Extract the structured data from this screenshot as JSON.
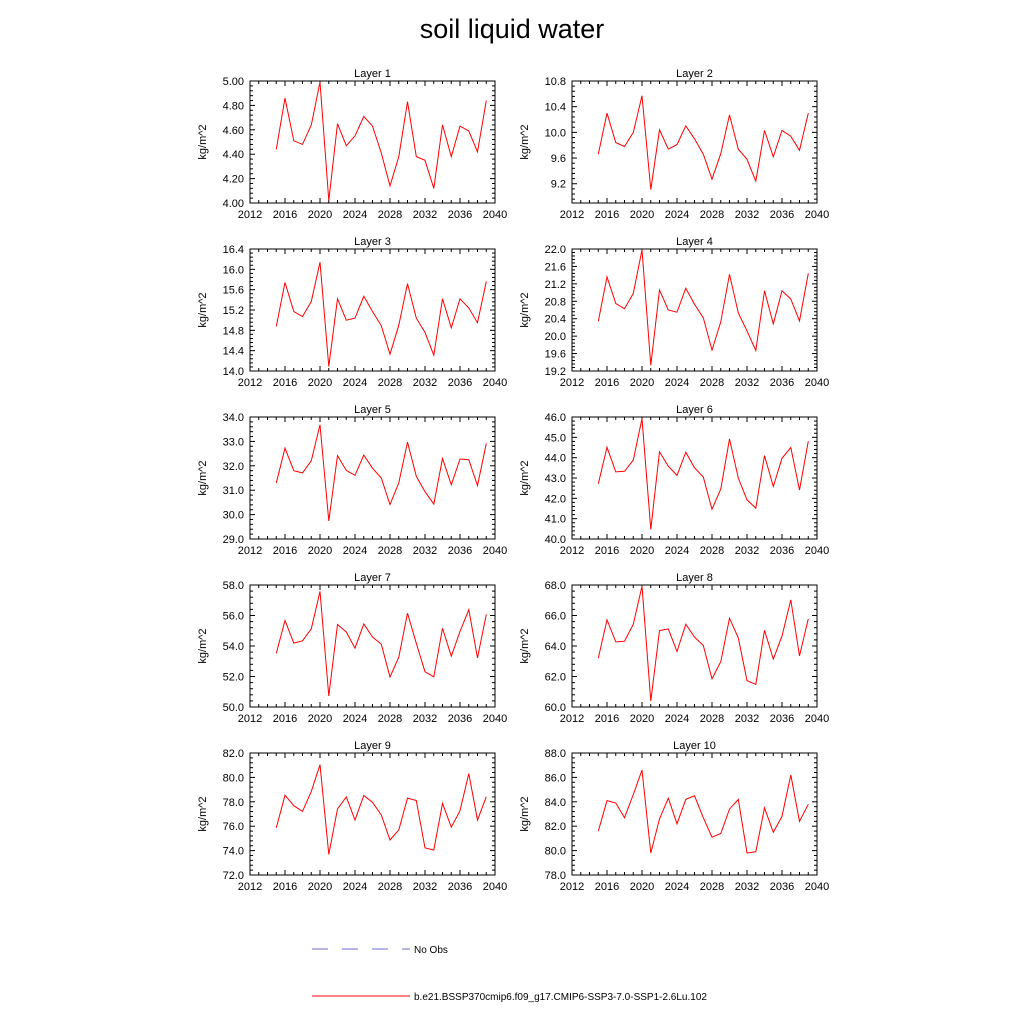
{
  "figure": {
    "title": "soil liquid water",
    "legend": [
      {
        "label": "No Obs",
        "color": "#6b6bd6",
        "style": "dashed"
      },
      {
        "label": "b.e21.BSSP370cmip6.f09_g17.CMIP6-SSP3-7.0-SSP1-2.6Lu.102",
        "color": "#ff0000",
        "style": "solid"
      }
    ]
  },
  "chart_data": [
    {
      "type": "line",
      "title": "Layer 1",
      "ylabel": "kg/m^2",
      "xlim": [
        2012,
        2040
      ],
      "ylim": [
        4.0,
        5.0
      ],
      "xticks": [
        "2012",
        "2016",
        "2020",
        "2024",
        "2028",
        "2032",
        "2036",
        "2040"
      ],
      "yticks": [
        "4.00",
        "4.20",
        "4.40",
        "4.60",
        "4.80",
        "5.00"
      ],
      "ytick_values": [
        4.0,
        4.2,
        4.4,
        4.6,
        4.8,
        5.0
      ],
      "series": [
        {
          "color": "#ff0000",
          "x": [
            2015,
            2016,
            2017,
            2018,
            2019,
            2020,
            2021,
            2022,
            2023,
            2024,
            2025,
            2026,
            2027,
            2028,
            2029,
            2030,
            2031,
            2032,
            2033,
            2034,
            2035,
            2036,
            2037,
            2038,
            2039
          ],
          "y": [
            4.44,
            4.86,
            4.51,
            4.48,
            4.64,
            4.99,
            4.02,
            4.65,
            4.47,
            4.55,
            4.71,
            4.63,
            4.41,
            4.14,
            4.38,
            4.83,
            4.38,
            4.35,
            4.12,
            4.64,
            4.38,
            4.63,
            4.59,
            4.42,
            4.84
          ]
        }
      ]
    },
    {
      "type": "line",
      "title": "Layer 2",
      "ylabel": "kg/m^2",
      "xlim": [
        2012,
        2040
      ],
      "ylim": [
        8.9,
        10.8
      ],
      "xticks": [
        "2012",
        "2016",
        "2020",
        "2024",
        "2028",
        "2032",
        "2036",
        "2040"
      ],
      "yticks": [
        "9.2",
        "9.6",
        "10.0",
        "10.4",
        "10.8"
      ],
      "ytick_values": [
        9.2,
        9.6,
        10.0,
        10.4,
        10.8
      ],
      "series": [
        {
          "color": "#ff0000",
          "x": [
            2015,
            2016,
            2017,
            2018,
            2019,
            2020,
            2021,
            2022,
            2023,
            2024,
            2025,
            2026,
            2027,
            2028,
            2029,
            2030,
            2031,
            2032,
            2033,
            2034,
            2035,
            2036,
            2037,
            2038,
            2039
          ],
          "y": [
            9.66,
            10.3,
            9.84,
            9.78,
            10.0,
            10.57,
            9.11,
            10.04,
            9.74,
            9.81,
            10.1,
            9.9,
            9.66,
            9.27,
            9.67,
            10.27,
            9.74,
            9.58,
            9.24,
            10.03,
            9.62,
            10.03,
            9.94,
            9.72,
            10.3
          ]
        }
      ]
    },
    {
      "type": "line",
      "title": "Layer 3",
      "ylabel": "kg/m^2",
      "xlim": [
        2012,
        2040
      ],
      "ylim": [
        14.0,
        16.4
      ],
      "xticks": [
        "2012",
        "2016",
        "2020",
        "2024",
        "2028",
        "2032",
        "2036",
        "2040"
      ],
      "yticks": [
        "14.0",
        "14.4",
        "14.8",
        "15.2",
        "15.6",
        "16.0",
        "16.4"
      ],
      "ytick_values": [
        14.0,
        14.4,
        14.8,
        15.2,
        15.6,
        16.0,
        16.4
      ],
      "series": [
        {
          "color": "#ff0000",
          "x": [
            2015,
            2016,
            2017,
            2018,
            2019,
            2020,
            2021,
            2022,
            2023,
            2024,
            2025,
            2026,
            2027,
            2028,
            2029,
            2030,
            2031,
            2032,
            2033,
            2034,
            2035,
            2036,
            2037,
            2038,
            2039
          ],
          "y": [
            14.88,
            15.74,
            15.17,
            15.07,
            15.37,
            16.14,
            14.09,
            15.42,
            15.0,
            15.04,
            15.47,
            15.17,
            14.89,
            14.33,
            14.9,
            15.72,
            15.04,
            14.76,
            14.31,
            15.42,
            14.85,
            15.42,
            15.24,
            14.95,
            15.76
          ]
        }
      ]
    },
    {
      "type": "line",
      "title": "Layer 4",
      "ylabel": "kg/m^2",
      "xlim": [
        2012,
        2040
      ],
      "ylim": [
        19.2,
        22.0
      ],
      "xticks": [
        "2012",
        "2016",
        "2020",
        "2024",
        "2028",
        "2032",
        "2036",
        "2040"
      ],
      "yticks": [
        "19.2",
        "19.6",
        "20.0",
        "20.4",
        "20.8",
        "21.2",
        "21.6",
        "22.0"
      ],
      "ytick_values": [
        19.2,
        19.6,
        20.0,
        20.4,
        20.8,
        21.2,
        21.6,
        22.0
      ],
      "series": [
        {
          "color": "#ff0000",
          "x": [
            2015,
            2016,
            2017,
            2018,
            2019,
            2020,
            2021,
            2022,
            2023,
            2024,
            2025,
            2026,
            2027,
            2028,
            2029,
            2030,
            2031,
            2032,
            2033,
            2034,
            2035,
            2036,
            2037,
            2038,
            2039
          ],
          "y": [
            20.34,
            21.36,
            20.75,
            20.63,
            20.98,
            21.98,
            19.33,
            21.06,
            20.6,
            20.55,
            21.1,
            20.73,
            20.42,
            19.68,
            20.33,
            21.42,
            20.53,
            20.12,
            19.67,
            21.04,
            20.28,
            21.04,
            20.85,
            20.35,
            21.44
          ]
        }
      ]
    },
    {
      "type": "line",
      "title": "Layer 5",
      "ylabel": "kg/m^2",
      "xlim": [
        2012,
        2040
      ],
      "ylim": [
        29.0,
        34.0
      ],
      "xticks": [
        "2012",
        "2016",
        "2020",
        "2024",
        "2028",
        "2032",
        "2036",
        "2040"
      ],
      "yticks": [
        "29.0",
        "30.0",
        "31.0",
        "32.0",
        "33.0",
        "34.0"
      ],
      "ytick_values": [
        29.0,
        30.0,
        31.0,
        32.0,
        33.0,
        34.0
      ],
      "series": [
        {
          "color": "#ff0000",
          "x": [
            2015,
            2016,
            2017,
            2018,
            2019,
            2020,
            2021,
            2022,
            2023,
            2024,
            2025,
            2026,
            2027,
            2028,
            2029,
            2030,
            2031,
            2032,
            2033,
            2034,
            2035,
            2036,
            2037,
            2038,
            2039
          ],
          "y": [
            31.3,
            32.72,
            31.8,
            31.71,
            32.21,
            33.68,
            29.74,
            32.42,
            31.81,
            31.61,
            32.44,
            31.9,
            31.5,
            30.41,
            31.3,
            32.97,
            31.57,
            30.94,
            30.43,
            32.3,
            31.22,
            32.28,
            32.25,
            31.19,
            32.92
          ]
        }
      ]
    },
    {
      "type": "line",
      "title": "Layer 6",
      "ylabel": "kg/m^2",
      "xlim": [
        2012,
        2040
      ],
      "ylim": [
        40.0,
        46.0
      ],
      "xticks": [
        "2012",
        "2016",
        "2020",
        "2024",
        "2028",
        "2032",
        "2036",
        "2040"
      ],
      "yticks": [
        "40.0",
        "41.0",
        "42.0",
        "43.0",
        "44.0",
        "45.0",
        "46.0"
      ],
      "ytick_values": [
        40.0,
        41.0,
        42.0,
        43.0,
        44.0,
        45.0,
        46.0
      ],
      "series": [
        {
          "color": "#ff0000",
          "x": [
            2015,
            2016,
            2017,
            2018,
            2019,
            2020,
            2021,
            2022,
            2023,
            2024,
            2025,
            2026,
            2027,
            2028,
            2029,
            2030,
            2031,
            2032,
            2033,
            2034,
            2035,
            2036,
            2037,
            2038,
            2039
          ],
          "y": [
            42.72,
            44.51,
            43.3,
            43.33,
            43.88,
            45.92,
            40.47,
            44.29,
            43.58,
            43.13,
            44.27,
            43.5,
            43.05,
            41.46,
            42.46,
            44.92,
            43.0,
            41.93,
            41.52,
            44.1,
            42.58,
            43.97,
            44.5,
            42.41,
            44.81
          ]
        }
      ]
    },
    {
      "type": "line",
      "title": "Layer 7",
      "ylabel": "kg/m^2",
      "xlim": [
        2012,
        2040
      ],
      "ylim": [
        50.0,
        58.0
      ],
      "xticks": [
        "2012",
        "2016",
        "2020",
        "2024",
        "2028",
        "2032",
        "2036",
        "2040"
      ],
      "yticks": [
        "50.0",
        "52.0",
        "54.0",
        "56.0",
        "58.0"
      ],
      "ytick_values": [
        50.0,
        52.0,
        54.0,
        56.0,
        58.0
      ],
      "series": [
        {
          "color": "#ff0000",
          "x": [
            2015,
            2016,
            2017,
            2018,
            2019,
            2020,
            2021,
            2022,
            2023,
            2024,
            2025,
            2026,
            2027,
            2028,
            2029,
            2030,
            2031,
            2032,
            2033,
            2034,
            2035,
            2036,
            2037,
            2038,
            2039
          ],
          "y": [
            53.52,
            55.67,
            54.19,
            54.34,
            55.13,
            57.58,
            50.72,
            55.41,
            54.92,
            53.86,
            55.44,
            54.59,
            54.11,
            51.97,
            53.27,
            56.15,
            54.18,
            52.31,
            51.98,
            55.16,
            53.33,
            54.96,
            56.38,
            53.22,
            56.08
          ]
        }
      ]
    },
    {
      "type": "line",
      "title": "Layer 8",
      "ylabel": "kg/m^2",
      "xlim": [
        2012,
        2040
      ],
      "ylim": [
        60.0,
        68.0
      ],
      "xticks": [
        "2012",
        "2016",
        "2020",
        "2024",
        "2028",
        "2032",
        "2036",
        "2040"
      ],
      "yticks": [
        "60.0",
        "62.0",
        "64.0",
        "66.0",
        "68.0"
      ],
      "ytick_values": [
        60.0,
        62.0,
        64.0,
        66.0,
        68.0
      ],
      "series": [
        {
          "color": "#ff0000",
          "x": [
            2015,
            2016,
            2017,
            2018,
            2019,
            2020,
            2021,
            2022,
            2023,
            2024,
            2025,
            2026,
            2027,
            2028,
            2029,
            2030,
            2031,
            2032,
            2033,
            2034,
            2035,
            2036,
            2037,
            2038,
            2039
          ],
          "y": [
            63.2,
            65.72,
            64.27,
            64.31,
            65.43,
            67.92,
            60.4,
            65.01,
            65.12,
            63.64,
            65.43,
            64.59,
            64.03,
            61.84,
            62.98,
            65.82,
            64.53,
            61.73,
            61.48,
            65.03,
            63.14,
            64.65,
            67.02,
            63.35,
            65.79
          ]
        }
      ]
    },
    {
      "type": "line",
      "title": "Layer 9",
      "ylabel": "kg/m^2",
      "xlim": [
        2012,
        2040
      ],
      "ylim": [
        72.0,
        82.0
      ],
      "xticks": [
        "2012",
        "2016",
        "2020",
        "2024",
        "2028",
        "2032",
        "2036",
        "2040"
      ],
      "yticks": [
        "72.0",
        "74.0",
        "76.0",
        "78.0",
        "80.0",
        "82.0"
      ],
      "ytick_values": [
        72.0,
        74.0,
        76.0,
        78.0,
        80.0,
        82.0
      ],
      "series": [
        {
          "color": "#ff0000",
          "x": [
            2015,
            2016,
            2017,
            2018,
            2019,
            2020,
            2021,
            2022,
            2023,
            2024,
            2025,
            2026,
            2027,
            2028,
            2029,
            2030,
            2031,
            2032,
            2033,
            2034,
            2035,
            2036,
            2037,
            2038,
            2039
          ],
          "y": [
            75.87,
            78.54,
            77.68,
            77.21,
            78.85,
            81.04,
            73.69,
            77.42,
            78.4,
            76.51,
            78.52,
            77.96,
            76.92,
            74.87,
            75.7,
            78.3,
            78.11,
            74.23,
            74.04,
            77.87,
            75.92,
            77.27,
            80.31,
            76.5,
            78.42
          ]
        }
      ]
    },
    {
      "type": "line",
      "title": "Layer 10",
      "ylabel": "kg/m^2",
      "xlim": [
        2012,
        2040
      ],
      "ylim": [
        78.0,
        88.0
      ],
      "xticks": [
        "2012",
        "2016",
        "2020",
        "2024",
        "2028",
        "2032",
        "2036",
        "2040"
      ],
      "yticks": [
        "78.0",
        "80.0",
        "82.0",
        "84.0",
        "86.0",
        "88.0"
      ],
      "ytick_values": [
        78.0,
        80.0,
        82.0,
        84.0,
        86.0,
        88.0
      ],
      "series": [
        {
          "color": "#ff0000",
          "x": [
            2015,
            2016,
            2017,
            2018,
            2019,
            2020,
            2021,
            2022,
            2023,
            2024,
            2025,
            2026,
            2027,
            2028,
            2029,
            2030,
            2031,
            2032,
            2033,
            2034,
            2035,
            2036,
            2037,
            2038,
            2039
          ],
          "y": [
            81.6,
            84.1,
            83.9,
            82.7,
            84.6,
            86.6,
            79.8,
            82.6,
            84.3,
            82.2,
            84.2,
            84.5,
            82.7,
            81.1,
            81.4,
            83.4,
            84.2,
            79.8,
            79.9,
            83.5,
            81.5,
            82.8,
            86.2,
            82.4,
            83.8
          ]
        }
      ]
    }
  ]
}
